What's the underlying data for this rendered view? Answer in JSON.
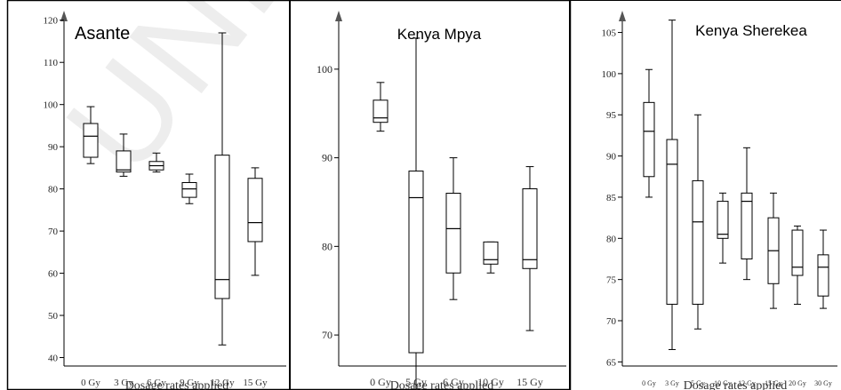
{
  "watermark": "UNDER",
  "chart_data": [
    {
      "type": "box",
      "title": "Asante",
      "xlabel": "Dosage rates applied",
      "ylabel": "",
      "ylim": [
        38,
        121
      ],
      "yticks": [
        40,
        50,
        60,
        70,
        80,
        90,
        100,
        110,
        120
      ],
      "categories": [
        "0 Gy",
        "3 Gy",
        "6 Gy",
        "9 Gy",
        "12 Gy",
        "15 Gy"
      ],
      "boxes": [
        {
          "min": 86,
          "q1": 87.5,
          "median": 92.5,
          "q3": 95.5,
          "max": 99.5
        },
        {
          "min": 83,
          "q1": 84,
          "median": 84.5,
          "q3": 89,
          "max": 93
        },
        {
          "min": 84,
          "q1": 84.5,
          "median": 85.5,
          "q3": 86.5,
          "max": 88.5
        },
        {
          "min": 76.5,
          "q1": 78,
          "median": 80,
          "q3": 81.5,
          "max": 83.5
        },
        {
          "min": 43,
          "q1": 54,
          "median": 58.5,
          "q3": 88,
          "max": 117
        },
        {
          "min": 59.5,
          "q1": 67.5,
          "median": 72,
          "q3": 82.5,
          "max": 85
        }
      ]
    },
    {
      "type": "box",
      "title": "Kenya Mpya",
      "xlabel": "Dosage rates applied",
      "ylabel": "",
      "ylim": [
        66.5,
        106
      ],
      "yticks": [
        70,
        80,
        90,
        100
      ],
      "categories": [
        "0 Gy",
        "5 Gy",
        "6 Gy",
        "10 Gy",
        "15 Gy"
      ],
      "boxes": [
        {
          "min": 93,
          "q1": 94,
          "median": 94.5,
          "q3": 96.5,
          "max": 98.5
        },
        {
          "min": 62,
          "q1": 68,
          "median": 85.5,
          "q3": 88.5,
          "max": 103.5
        },
        {
          "min": 74,
          "q1": 77,
          "median": 82,
          "q3": 86,
          "max": 90
        },
        {
          "min": 77,
          "q1": 78,
          "median": 78.5,
          "q3": 80.5,
          "max": 80.5
        },
        {
          "min": 70.5,
          "q1": 77.5,
          "median": 78.5,
          "q3": 86.5,
          "max": 89
        }
      ]
    },
    {
      "type": "box",
      "title": "Kenya Sherekea",
      "xlabel": "Dosage rates applied",
      "ylabel": "",
      "ylim": [
        64.5,
        107
      ],
      "yticks": [
        65,
        70,
        75,
        80,
        85,
        90,
        95,
        100,
        105
      ],
      "categories": [
        "0 Gy",
        "3 Gy",
        "5 Gy",
        "10 Gy",
        "12 Gy",
        "15 Gy",
        "20 Gy",
        "30 Gy"
      ],
      "boxes": [
        {
          "min": 85,
          "q1": 87.5,
          "median": 93,
          "q3": 96.5,
          "max": 100.5
        },
        {
          "min": 66.5,
          "q1": 72,
          "median": 89,
          "q3": 92,
          "max": 106.5
        },
        {
          "min": 69,
          "q1": 72,
          "median": 82,
          "q3": 87,
          "max": 95
        },
        {
          "min": 77,
          "q1": 80,
          "median": 80.5,
          "q3": 84.5,
          "max": 85.5
        },
        {
          "min": 75,
          "q1": 77.5,
          "median": 84.5,
          "q3": 85.5,
          "max": 91
        },
        {
          "min": 71.5,
          "q1": 74.5,
          "median": 78.5,
          "q3": 82.5,
          "max": 85.5
        },
        {
          "min": 72,
          "q1": 75.5,
          "median": 76.5,
          "q3": 81,
          "max": 81.5
        },
        {
          "min": 71.5,
          "q1": 73,
          "median": 76.5,
          "q3": 78,
          "max": 81
        }
      ]
    }
  ]
}
